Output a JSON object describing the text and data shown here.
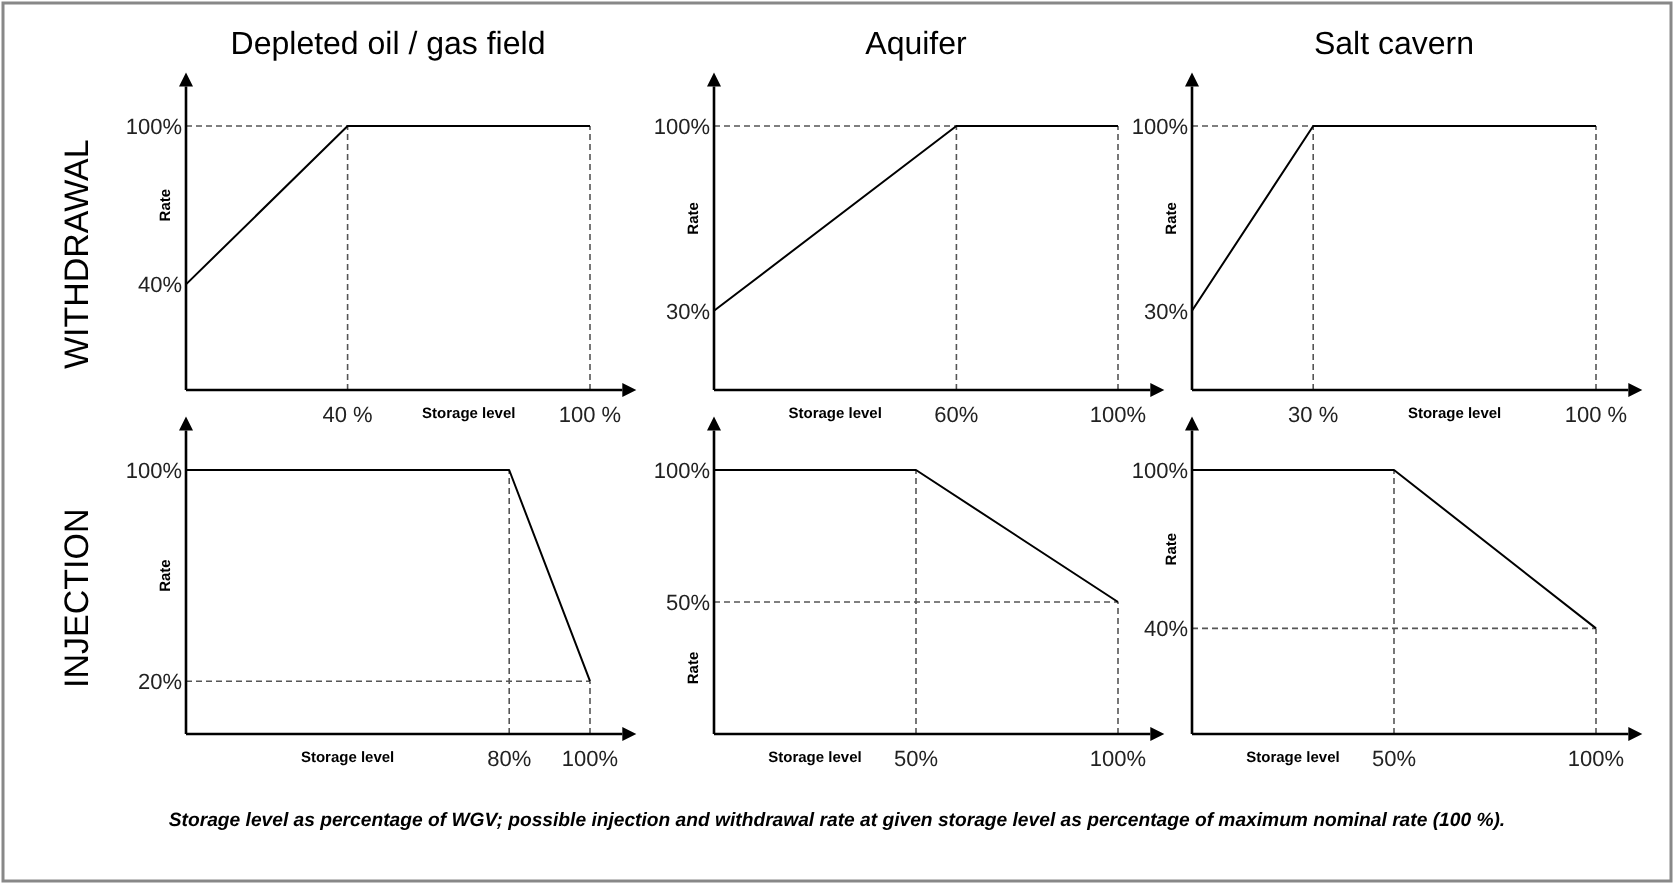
{
  "chart_data": [
    {
      "type": "line",
      "title": "Depleted oil / gas field",
      "xlabel": "Storage level",
      "ylabel": "Rate",
      "annotations": [
        "WITHDRAWAL",
        "Storage level as percentage of WGV; possible injection and withdrawal rate at given storage level as percentage of maximum nominal rate (100 %)."
      ],
      "xlim": [
        0,
        108
      ],
      "ylim": [
        0,
        115
      ],
      "xticks": [
        {
          "value": 40,
          "label": "40 %"
        },
        {
          "value": 100,
          "label": "100 %"
        }
      ],
      "yticks": [
        {
          "value": 40,
          "label": "40%"
        },
        {
          "value": 100,
          "label": "100%"
        }
      ],
      "series": [
        {
          "color": "#000000",
          "x": [
            0,
            40,
            100
          ],
          "values": [
            40,
            100,
            100
          ]
        }
      ],
      "ref_lines": [
        {
          "axis": "y",
          "value": 100,
          "line_style": "dashed"
        },
        {
          "axis": "x",
          "value": 40,
          "line_style": "dashed"
        },
        {
          "axis": "x",
          "value": 100,
          "line_style": "dashed"
        }
      ]
    },
    {
      "type": "line",
      "title": "Aquifer",
      "xlabel": "Storage level",
      "ylabel": "Rate",
      "xlim": [
        0,
        108
      ],
      "ylim": [
        0,
        115
      ],
      "xticks": [
        {
          "value": 60,
          "label": "60%"
        },
        {
          "value": 100,
          "label": "100%"
        }
      ],
      "yticks": [
        {
          "value": 30,
          "label": "30%"
        },
        {
          "value": 100,
          "label": "100%"
        }
      ],
      "series": [
        {
          "color": "#000000",
          "x": [
            0,
            60,
            100
          ],
          "values": [
            30,
            100,
            100
          ]
        }
      ],
      "ref_lines": [
        {
          "axis": "y",
          "value": 100,
          "line_style": "dashed"
        },
        {
          "axis": "x",
          "value": 60,
          "line_style": "dashed"
        },
        {
          "axis": "x",
          "value": 100,
          "line_style": "dashed"
        }
      ]
    },
    {
      "type": "line",
      "title": "Salt cavern",
      "xlabel": "Storage level",
      "ylabel": "Rate",
      "xlim": [
        0,
        108
      ],
      "ylim": [
        0,
        115
      ],
      "xticks": [
        {
          "value": 30,
          "label": "30 %"
        },
        {
          "value": 100,
          "label": "100 %"
        }
      ],
      "yticks": [
        {
          "value": 30,
          "label": "30%"
        },
        {
          "value": 100,
          "label": "100%"
        }
      ],
      "series": [
        {
          "color": "#000000",
          "x": [
            0,
            30,
            100
          ],
          "values": [
            30,
            100,
            100
          ]
        }
      ],
      "ref_lines": [
        {
          "axis": "y",
          "value": 100,
          "line_style": "dashed"
        },
        {
          "axis": "x",
          "value": 30,
          "line_style": "dashed"
        },
        {
          "axis": "x",
          "value": 100,
          "line_style": "dashed"
        }
      ]
    },
    {
      "type": "line",
      "xlabel": "Storage level",
      "ylabel": "Rate",
      "annotations": [
        "INJECTION"
      ],
      "xlim": [
        0,
        108
      ],
      "ylim": [
        0,
        115
      ],
      "xticks": [
        {
          "value": 80,
          "label": "80%"
        },
        {
          "value": 100,
          "label": "100%"
        }
      ],
      "yticks": [
        {
          "value": 20,
          "label": "20%"
        },
        {
          "value": 100,
          "label": "100%"
        }
      ],
      "series": [
        {
          "color": "#000000",
          "x": [
            0,
            80,
            100
          ],
          "values": [
            100,
            100,
            20
          ]
        }
      ],
      "ref_lines": [
        {
          "axis": "y",
          "value": 20,
          "line_style": "dashed"
        },
        {
          "axis": "x",
          "value": 80,
          "line_style": "dashed"
        },
        {
          "axis": "x",
          "value": 100,
          "line_style": "dashed"
        }
      ]
    },
    {
      "type": "line",
      "xlabel": "Storage level",
      "ylabel": "Rate",
      "xlim": [
        0,
        108
      ],
      "ylim": [
        0,
        115
      ],
      "xticks": [
        {
          "value": 50,
          "label": "50%"
        },
        {
          "value": 100,
          "label": "100%"
        }
      ],
      "yticks": [
        {
          "value": 50,
          "label": "50%"
        },
        {
          "value": 100,
          "label": "100%"
        }
      ],
      "series": [
        {
          "color": "#000000",
          "x": [
            0,
            50,
            100
          ],
          "values": [
            100,
            100,
            50
          ]
        }
      ],
      "ref_lines": [
        {
          "axis": "y",
          "value": 50,
          "line_style": "dashed"
        },
        {
          "axis": "x",
          "value": 50,
          "line_style": "dashed"
        },
        {
          "axis": "x",
          "value": 100,
          "line_style": "dashed"
        }
      ]
    },
    {
      "type": "line",
      "xlabel": "Storage level",
      "ylabel": "Rate",
      "xlim": [
        0,
        108
      ],
      "ylim": [
        0,
        115
      ],
      "xticks": [
        {
          "value": 50,
          "label": "50%"
        },
        {
          "value": 100,
          "label": "100%"
        }
      ],
      "yticks": [
        {
          "value": 40,
          "label": "40%"
        },
        {
          "value": 100,
          "label": "100%"
        }
      ],
      "series": [
        {
          "color": "#000000",
          "x": [
            0,
            50,
            100
          ],
          "values": [
            100,
            100,
            40
          ]
        }
      ],
      "ref_lines": [
        {
          "axis": "y",
          "value": 40,
          "line_style": "dashed"
        },
        {
          "axis": "x",
          "value": 50,
          "line_style": "dashed"
        },
        {
          "axis": "x",
          "value": 100,
          "line_style": "dashed"
        }
      ]
    }
  ]
}
